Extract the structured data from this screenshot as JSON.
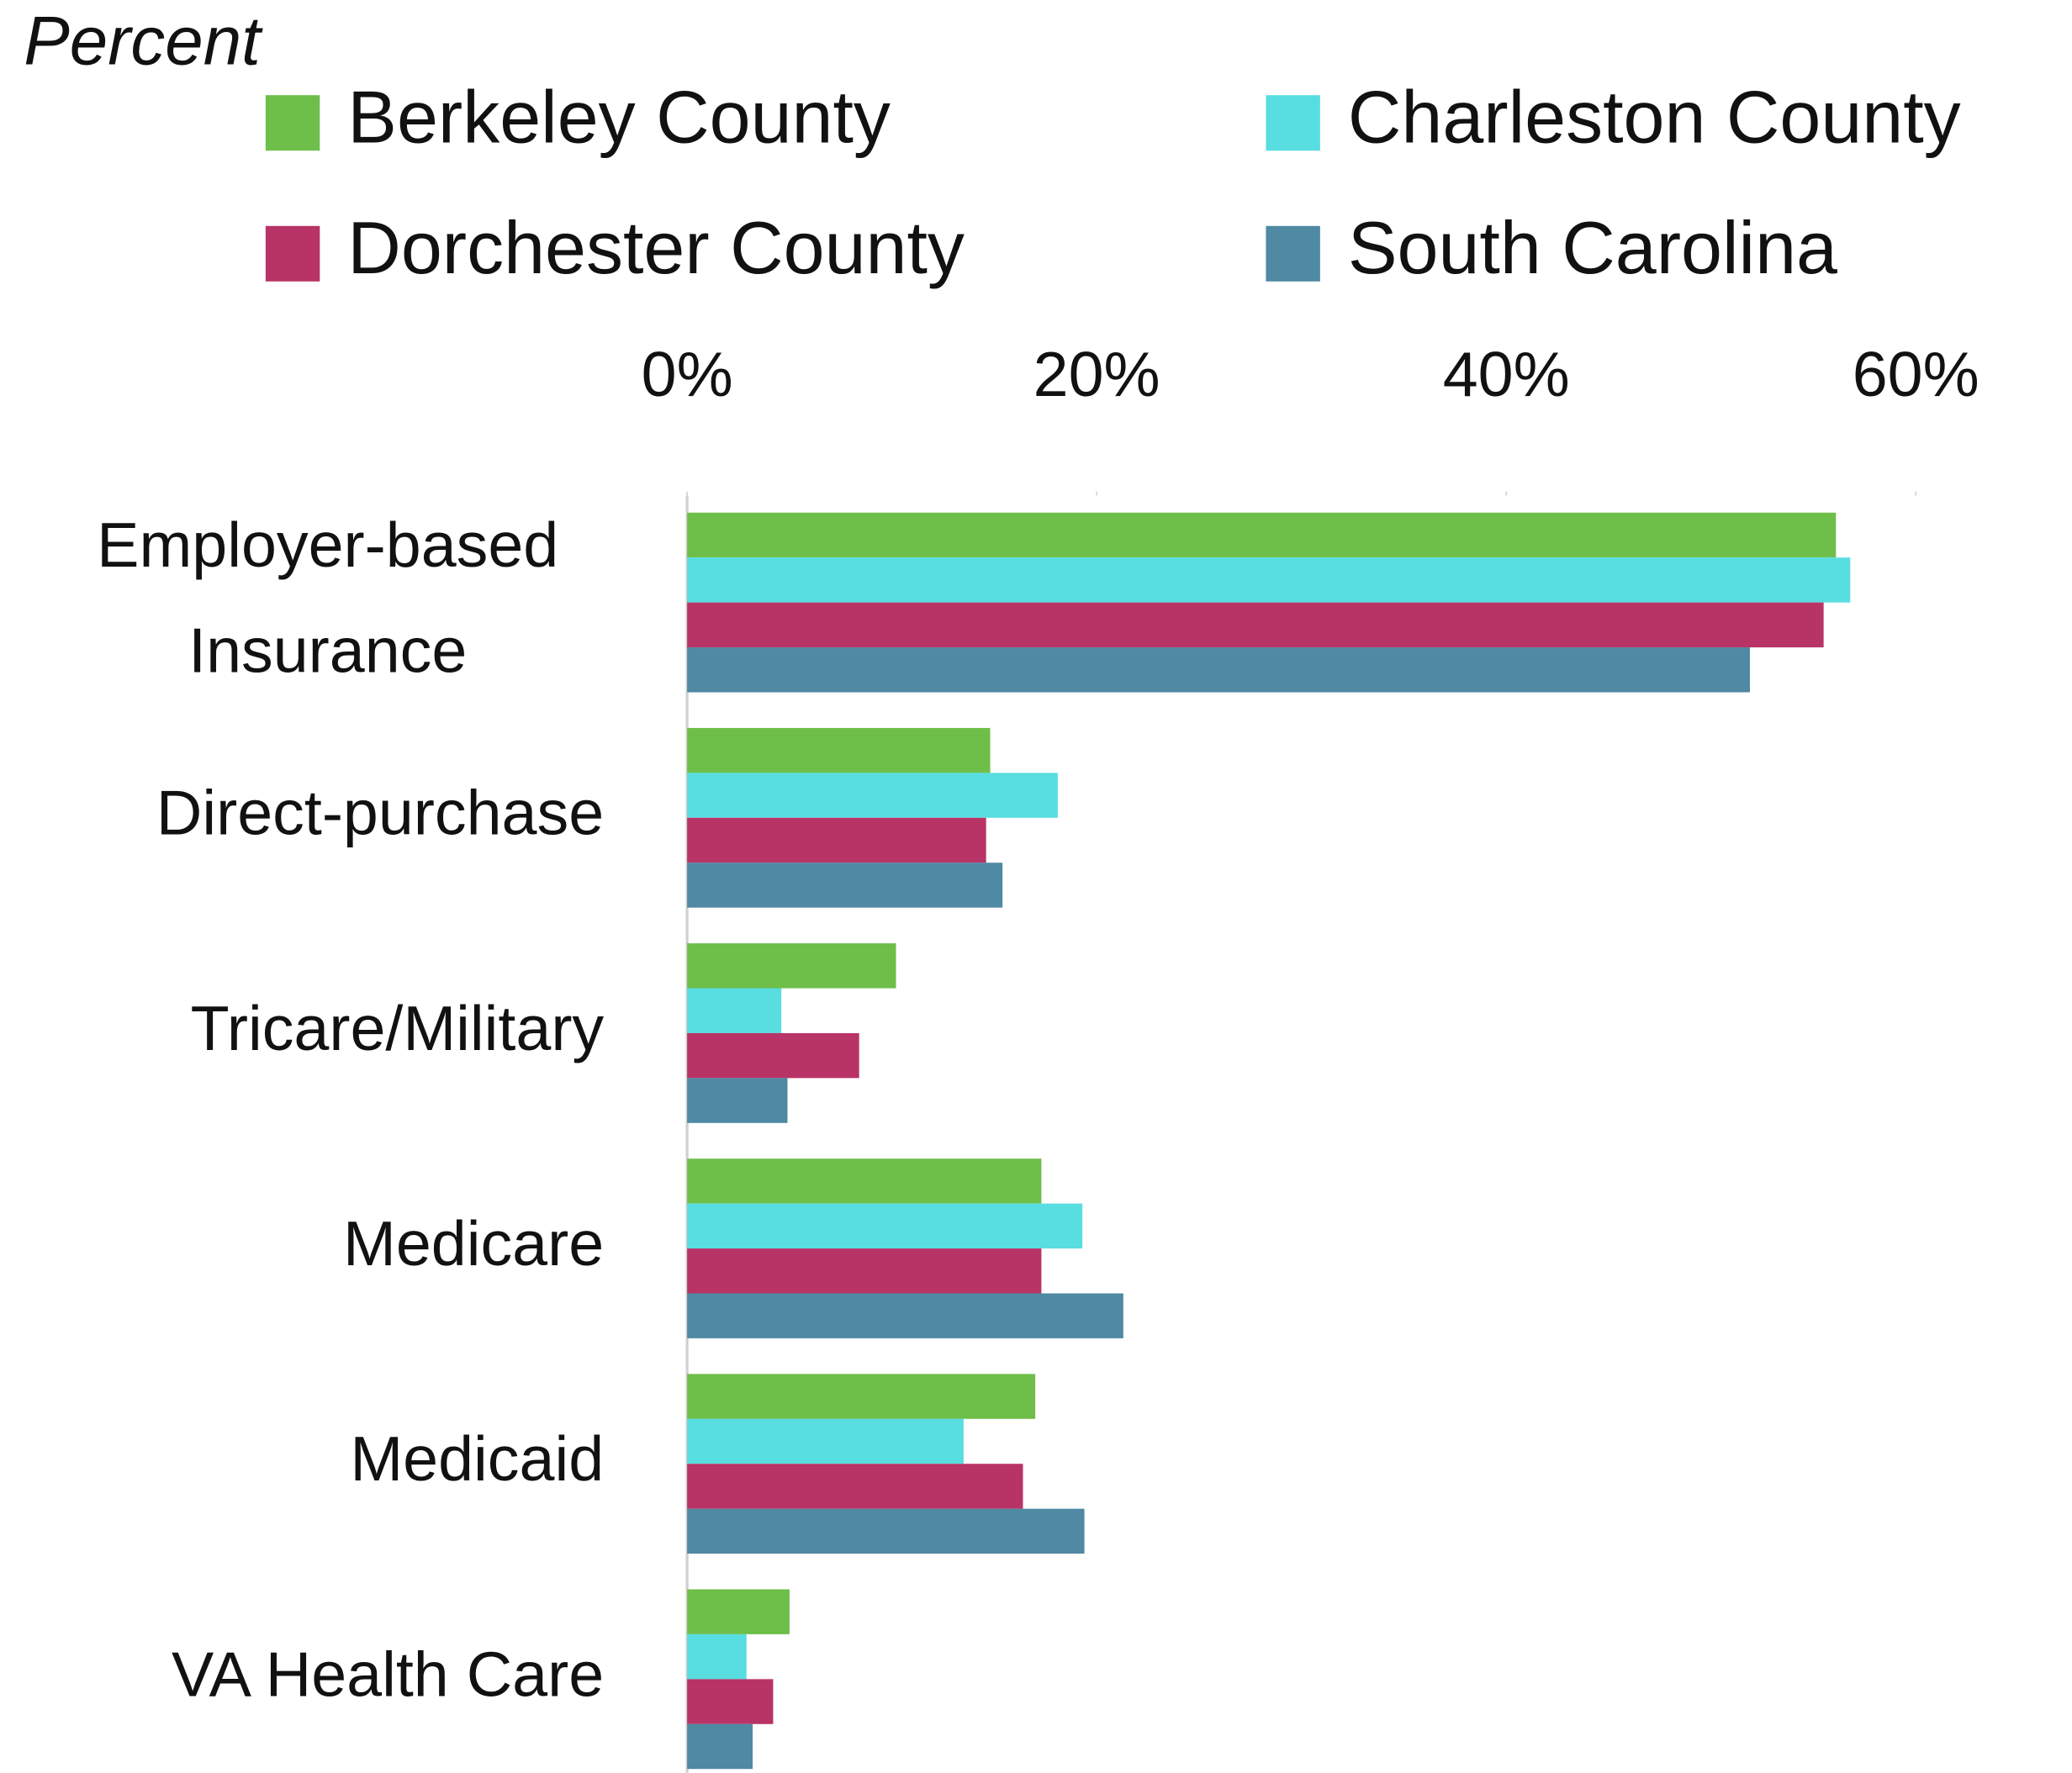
{
  "chart_data": {
    "type": "bar",
    "orientation": "horizontal",
    "subtitle": "Percent",
    "categories": [
      "Employer-based\nInsurance",
      "Direct-purchase",
      "Tricare/Military",
      "Medicare",
      "Medicaid",
      "VA Health Care"
    ],
    "series": [
      {
        "name": "Berkeley County",
        "color": "#6ebe4a",
        "values": [
          56.1,
          14.8,
          10.2,
          17.3,
          17.0,
          5.0
        ]
      },
      {
        "name": "Charleston County",
        "color": "#58dde0",
        "values": [
          56.8,
          18.1,
          4.6,
          19.3,
          13.5,
          2.9
        ]
      },
      {
        "name": "Dorchester County",
        "color": "#b83366",
        "values": [
          55.5,
          14.6,
          8.4,
          17.3,
          16.4,
          4.2
        ]
      },
      {
        "name": "South Carolina",
        "color": "#4f89a3",
        "values": [
          51.9,
          15.4,
          4.9,
          21.3,
          19.4,
          3.2
        ]
      }
    ],
    "xlim": [
      0,
      67.5
    ],
    "xticks": [
      {
        "value": 0,
        "label": "0%"
      },
      {
        "value": 20,
        "label": "20%"
      },
      {
        "value": 40,
        "label": "40%"
      },
      {
        "value": 60,
        "label": "60%"
      }
    ],
    "legend": "top",
    "grid": false
  }
}
